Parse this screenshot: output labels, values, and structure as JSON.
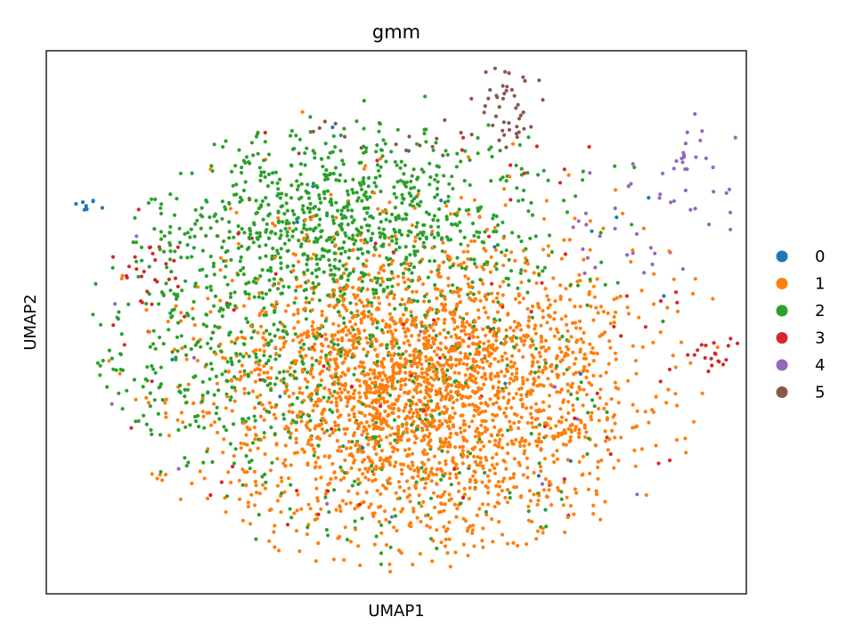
{
  "chart_data": {
    "type": "scatter",
    "title": "gmm",
    "xlabel": "UMAP1",
    "ylabel": "UMAP2",
    "xlim": [
      0,
      100
    ],
    "ylim": [
      0,
      100
    ],
    "grid": false,
    "ticks": false,
    "legend_placement": "right",
    "point_counts_approx": {
      "0": 30,
      "1": 2700,
      "2": 1500,
      "3": 120,
      "4": 70,
      "5": 60
    },
    "series": [
      {
        "name": "0",
        "color": "#1f77b4",
        "clusters": [
          {
            "cx": 5.5,
            "cy": 71.5,
            "sx": 0.9,
            "sy": 0.6,
            "n": 9
          }
        ],
        "scatter_points": 22
      },
      {
        "name": "1",
        "color": "#ff7f0e",
        "clusters": [
          {
            "cx": 54,
            "cy": 38,
            "sx": 15,
            "sy": 14,
            "n": 2700
          }
        ]
      },
      {
        "name": "2",
        "color": "#2ca02c",
        "clusters": [
          {
            "cx": 42,
            "cy": 68,
            "sx": 14,
            "sy": 9,
            "n": 900
          },
          {
            "cx": 25,
            "cy": 45,
            "sx": 9,
            "sy": 12,
            "n": 300
          },
          {
            "cx": 48,
            "cy": 35,
            "sx": 16,
            "sy": 16,
            "n": 300
          }
        ]
      },
      {
        "name": "3",
        "color": "#d62728",
        "clusters": [
          {
            "cx": 15,
            "cy": 60,
            "sx": 2.5,
            "sy": 4,
            "n": 25
          },
          {
            "cx": 96,
            "cy": 45,
            "sx": 2.5,
            "sy": 1.8,
            "n": 20
          }
        ],
        "scatter_points": 75
      },
      {
        "name": "4",
        "color": "#9467bd",
        "clusters": [
          {
            "cx": 92,
            "cy": 78,
            "sx": 3,
            "sy": 4,
            "n": 30
          },
          {
            "cx": 83,
            "cy": 66,
            "sx": 5,
            "sy": 6,
            "n": 25
          }
        ],
        "scatter_points": 15
      },
      {
        "name": "5",
        "color": "#8c564b",
        "clusters": [
          {
            "cx": 66,
            "cy": 90,
            "sx": 2,
            "sy": 4,
            "n": 40
          },
          {
            "cx": 50,
            "cy": 84,
            "sx": 9,
            "sy": 2,
            "n": 20
          }
        ]
      }
    ],
    "legend": [
      "0",
      "1",
      "2",
      "3",
      "4",
      "5"
    ]
  }
}
